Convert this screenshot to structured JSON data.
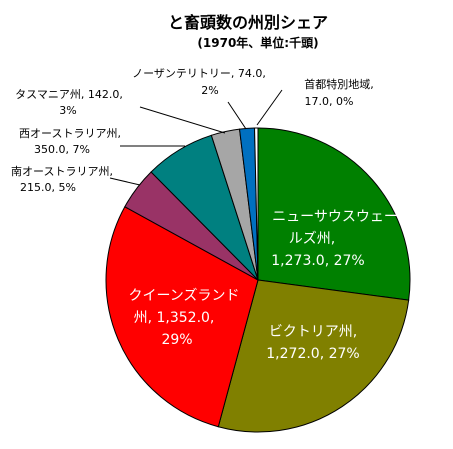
{
  "chart_data": {
    "type": "pie",
    "title": "と畜頭数の州別シェア",
    "subtitle": "(1970年、単位:千頭)",
    "slices": [
      {
        "name": "ニューサウスウェールズ州",
        "value": 1273.0,
        "value_label": "1,273.0",
        "percent_label": "27%",
        "color": "#008000"
      },
      {
        "name": "ビクトリア州",
        "value": 1272.0,
        "value_label": "1,272.0",
        "percent_label": "27%",
        "color": "#808000"
      },
      {
        "name": "クイーンズランド州",
        "value": 1352.0,
        "value_label": "1,352.0",
        "percent_label": "29%",
        "color": "#ff0000"
      },
      {
        "name": "南オーストラリア州",
        "value": 215.0,
        "value_label": "215.0",
        "percent_label": "5%",
        "color": "#993366"
      },
      {
        "name": "西オーストラリア州",
        "value": 350.0,
        "value_label": "350.0",
        "percent_label": "7%",
        "color": "#008080"
      },
      {
        "name": "タスマニア州",
        "value": 142.0,
        "value_label": "142.0",
        "percent_label": "3%",
        "color": "#a6a6a6"
      },
      {
        "name": "ノーザンテリトリー",
        "value": 74.0,
        "value_label": "74.0",
        "percent_label": "2%",
        "color": "#0070c0"
      },
      {
        "name": "首都特別地域",
        "value": 17.0,
        "value_label": "17.0",
        "percent_label": "0%",
        "color": "#ffffff"
      }
    ],
    "labels": {
      "nsw_line1": "ニューサウスウェー",
      "nsw_line2": "ルズ州,",
      "nsw_line3": "1,273.0, 27%",
      "vic_line1": "ビクトリア州,",
      "vic_line2": "1,272.0, 27%",
      "qld_line1": "クイーンズランド",
      "qld_line2": "州, 1,352.0,",
      "qld_line3": "29%",
      "sa_line1": "南オーストラリア州,",
      "sa_line2": "215.0, 5%",
      "wa_line1": "西オーストラリア州,",
      "wa_line2": "350.0, 7%",
      "tas_line1": "タスマニア州, 142.0,",
      "tas_line2": "3%",
      "nt_line1": "ノーザンテリトリー, 74.0,",
      "nt_line2": "2%",
      "act_line1": "首都特別地域,",
      "act_line2": "17.0, 0%"
    }
  }
}
